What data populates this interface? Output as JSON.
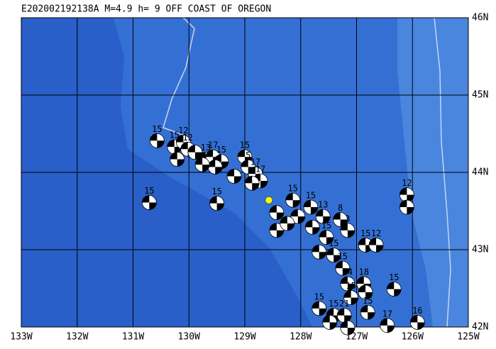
{
  "map": {
    "title": "E202002192138A  M=4.9 h=  9 OFF COAST OF OREGON",
    "lonlim": [
      -133,
      -125
    ],
    "latlim": [
      42,
      46
    ],
    "lon_ticks": [
      {
        "value": -133,
        "label": "133W"
      },
      {
        "value": -132,
        "label": "132W"
      },
      {
        "value": -131,
        "label": "131W"
      },
      {
        "value": -130,
        "label": "130W"
      },
      {
        "value": -129,
        "label": "129W"
      },
      {
        "value": -128,
        "label": "128W"
      },
      {
        "value": -127,
        "label": "127W"
      },
      {
        "value": -126,
        "label": "126W"
      },
      {
        "value": -125,
        "label": "125W"
      }
    ],
    "lat_ticks": [
      {
        "value": 42,
        "label": "42N"
      },
      {
        "value": 43,
        "label": "43N"
      },
      {
        "value": 44,
        "label": "44N"
      },
      {
        "value": 45,
        "label": "45N"
      },
      {
        "value": 46,
        "label": "46N"
      }
    ],
    "epicenter": {
      "lon": -128.57,
      "lat": 43.64,
      "color": "#ffff00"
    },
    "events": [
      {
        "lon": -130.57,
        "lat": 44.41,
        "label": "15"
      },
      {
        "lon": -130.26,
        "lat": 44.33,
        "label": "15"
      },
      {
        "lon": -130.1,
        "lat": 44.39,
        "label": "12"
      },
      {
        "lon": -130.02,
        "lat": 44.3,
        "label": "12"
      },
      {
        "lon": -130.21,
        "lat": 44.17,
        "label": null
      },
      {
        "lon": -129.89,
        "lat": 44.26,
        "label": null
      },
      {
        "lon": -129.7,
        "lat": 44.17,
        "label": "13"
      },
      {
        "lon": -129.57,
        "lat": 44.2,
        "label": "17"
      },
      {
        "lon": -129.42,
        "lat": 44.14,
        "label": "15"
      },
      {
        "lon": -129.53,
        "lat": 44.07,
        "label": null
      },
      {
        "lon": -129.76,
        "lat": 44.1,
        "label": null
      },
      {
        "lon": -129.0,
        "lat": 44.2,
        "label": "15"
      },
      {
        "lon": -128.94,
        "lat": 44.07,
        "label": "5"
      },
      {
        "lon": -128.81,
        "lat": 43.98,
        "label": "17"
      },
      {
        "lon": -128.72,
        "lat": 43.89,
        "label": "17"
      },
      {
        "lon": -128.87,
        "lat": 43.86,
        "label": null
      },
      {
        "lon": -129.19,
        "lat": 43.95,
        "label": null
      },
      {
        "lon": -130.71,
        "lat": 43.61,
        "label": "15"
      },
      {
        "lon": -129.5,
        "lat": 43.6,
        "label": "15"
      },
      {
        "lon": -128.14,
        "lat": 43.64,
        "label": "15"
      },
      {
        "lon": -127.82,
        "lat": 43.55,
        "label": "15"
      },
      {
        "lon": -128.05,
        "lat": 43.43,
        "label": null
      },
      {
        "lon": -128.43,
        "lat": 43.48,
        "label": null
      },
      {
        "lon": -128.43,
        "lat": 43.25,
        "label": null
      },
      {
        "lon": -128.24,
        "lat": 43.34,
        "label": null
      },
      {
        "lon": -127.79,
        "lat": 43.29,
        "label": null
      },
      {
        "lon": -127.6,
        "lat": 43.43,
        "label": "13"
      },
      {
        "lon": -127.29,
        "lat": 43.39,
        "label": "8"
      },
      {
        "lon": -127.16,
        "lat": 43.25,
        "label": "3"
      },
      {
        "lon": -127.54,
        "lat": 43.16,
        "label": "15"
      },
      {
        "lon": -127.41,
        "lat": 42.93,
        "label": "15"
      },
      {
        "lon": -127.67,
        "lat": 42.97,
        "label": null
      },
      {
        "lon": -127.25,
        "lat": 42.76,
        "label": "15"
      },
      {
        "lon": -127.16,
        "lat": 42.56,
        "label": "14"
      },
      {
        "lon": -126.87,
        "lat": 42.56,
        "label": "18"
      },
      {
        "lon": -126.84,
        "lat": 42.45,
        "label": null
      },
      {
        "lon": -126.84,
        "lat": 43.06,
        "label": "15"
      },
      {
        "lon": -126.65,
        "lat": 43.06,
        "label": "12"
      },
      {
        "lon": -126.1,
        "lat": 43.71,
        "label": "12"
      },
      {
        "lon": -126.1,
        "lat": 43.55,
        "label": null
      },
      {
        "lon": -126.33,
        "lat": 42.49,
        "label": "15"
      },
      {
        "lon": -127.67,
        "lat": 42.24,
        "label": "15"
      },
      {
        "lon": -127.41,
        "lat": 42.15,
        "label": "15"
      },
      {
        "lon": -127.1,
        "lat": 42.38,
        "label": "15"
      },
      {
        "lon": -127.22,
        "lat": 42.15,
        "label": "21"
      },
      {
        "lon": -127.16,
        "lat": 41.99,
        "label": null
      },
      {
        "lon": -126.8,
        "lat": 42.19,
        "label": "15"
      },
      {
        "lon": -126.45,
        "lat": 42.02,
        "label": "17"
      },
      {
        "lon": -125.91,
        "lat": 42.06,
        "label": "16"
      },
      {
        "lon": -127.48,
        "lat": 42.06,
        "label": null
      }
    ]
  }
}
